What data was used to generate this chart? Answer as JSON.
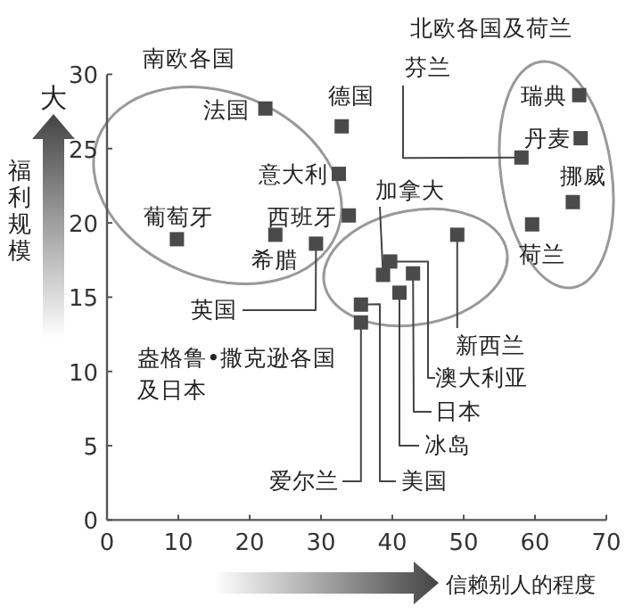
{
  "chart_data": {
    "type": "scatter",
    "xlabel": "信赖别人的程度",
    "ylabel": "福利规模",
    "xlim": [
      0,
      70
    ],
    "ylim": [
      0,
      30
    ],
    "xticks": [
      0,
      10,
      20,
      30,
      40,
      50,
      60,
      70
    ],
    "yticks": [
      0,
      5,
      10,
      15,
      20,
      25,
      30
    ],
    "grid": false,
    "marker": "square",
    "series": [
      {
        "color": "#4a4a4a",
        "x": [
          22.2,
          32.9,
          32.5,
          33.9,
          23.6,
          9.8,
          29.3,
          58.1,
          66.2,
          66.4,
          65.3,
          59.6,
          38.7,
          39.7,
          49.1,
          42.9,
          41.0,
          35.6,
          35.6
        ],
        "values": [
          27.7,
          26.5,
          23.3,
          20.5,
          19.2,
          18.9,
          18.6,
          24.4,
          28.6,
          25.7,
          21.4,
          19.9,
          16.5,
          17.4,
          19.2,
          16.6,
          15.3,
          14.5,
          13.3
        ]
      }
    ],
    "annotations": [
      {
        "text": "法国",
        "x": 22.2,
        "y": 27.7
      },
      {
        "text": "德国",
        "x": 32.9,
        "y": 26.5
      },
      {
        "text": "意大利",
        "x": 32.5,
        "y": 23.3
      },
      {
        "text": "西班牙",
        "x": 33.9,
        "y": 20.5
      },
      {
        "text": "希腊",
        "x": 23.6,
        "y": 19.2
      },
      {
        "text": "葡萄牙",
        "x": 9.8,
        "y": 18.9
      },
      {
        "text": "英国",
        "x": 29.3,
        "y": 18.6
      },
      {
        "text": "芬兰",
        "x": 58.1,
        "y": 24.4
      },
      {
        "text": "瑞典",
        "x": 66.2,
        "y": 28.6
      },
      {
        "text": "丹麦",
        "x": 66.4,
        "y": 25.7
      },
      {
        "text": "挪威",
        "x": 65.3,
        "y": 21.4
      },
      {
        "text": "荷兰",
        "x": 59.6,
        "y": 19.9
      },
      {
        "text": "加拿大",
        "x": 38.7,
        "y": 16.5
      },
      {
        "text": "澳大利亚",
        "x": 39.7,
        "y": 17.4
      },
      {
        "text": "新西兰",
        "x": 49.1,
        "y": 19.2
      },
      {
        "text": "日本",
        "x": 42.9,
        "y": 16.6
      },
      {
        "text": "冰岛",
        "x": 41.0,
        "y": 15.3
      },
      {
        "text": "美国",
        "x": 35.6,
        "y": 14.5
      },
      {
        "text": "爱尔兰",
        "x": 35.6,
        "y": 13.3
      },
      "南欧各国",
      "北欧各国及荷兰",
      "盎格鲁•撒克逊各国",
      "及日本",
      "大"
    ]
  }
}
